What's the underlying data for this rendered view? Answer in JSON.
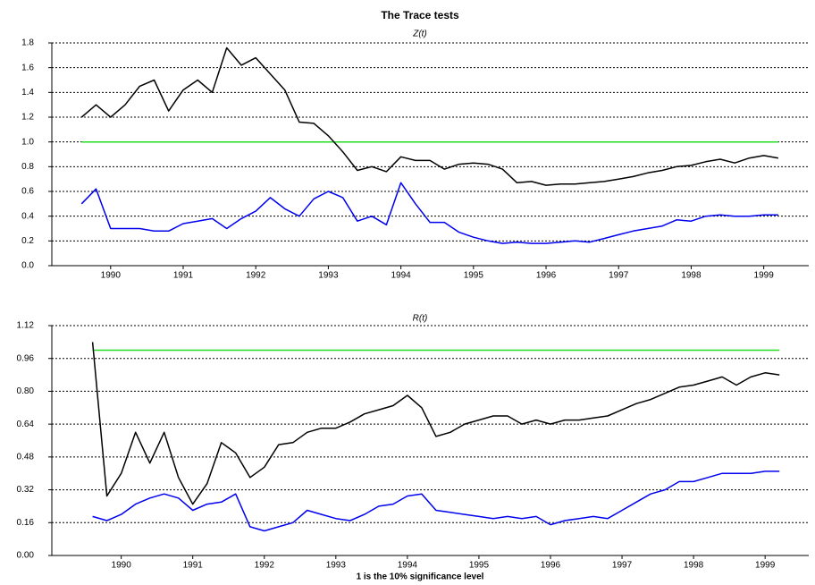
{
  "title": "The Trace tests",
  "footnote": "1 is the 10% significance level",
  "chart_data": [
    {
      "type": "line",
      "subtitle": "Z(t)",
      "x": [
        1989.6,
        1989.8,
        1990.0,
        1990.2,
        1990.4,
        1990.6,
        1990.8,
        1991.0,
        1991.2,
        1991.4,
        1991.6,
        1991.8,
        1992.0,
        1992.2,
        1992.4,
        1992.6,
        1992.8,
        1993.0,
        1993.2,
        1993.4,
        1993.6,
        1993.8,
        1994.0,
        1994.2,
        1994.4,
        1994.6,
        1994.8,
        1995.0,
        1995.2,
        1995.4,
        1995.6,
        1995.8,
        1996.0,
        1996.2,
        1996.4,
        1996.6,
        1996.8,
        1997.0,
        1997.2,
        1997.4,
        1997.6,
        1997.8,
        1998.0,
        1998.2,
        1998.4,
        1998.6,
        1998.8,
        1999.0,
        1999.2
      ],
      "xlim": [
        1989.19,
        1999.62
      ],
      "xticks": [
        1990,
        1991,
        1992,
        1993,
        1994,
        1995,
        1996,
        1997,
        1998,
        1999
      ],
      "ylim": [
        0,
        1.8
      ],
      "yticks": [
        {
          "value": 0,
          "label": "0.0"
        },
        0.2,
        0.4,
        0.6,
        0.8,
        {
          "value": 1,
          "label": "1.0"
        },
        1.2,
        1.4,
        1.6,
        1.8
      ],
      "grid": true,
      "series": [
        {
          "color": "#22dd22",
          "values": [
            1,
            1,
            1,
            1,
            1,
            1,
            1,
            1,
            1,
            1,
            1,
            1,
            1,
            1,
            1,
            1,
            1,
            1,
            1,
            1,
            1,
            1,
            1,
            1,
            1,
            1,
            1,
            1,
            1,
            1,
            1,
            1,
            1,
            1,
            1,
            1,
            1,
            1,
            1,
            1,
            1,
            1,
            1,
            1,
            1,
            1,
            1,
            1,
            1
          ]
        },
        {
          "color": "#000000",
          "values": [
            1.2,
            1.3,
            1.2,
            1.3,
            1.45,
            1.5,
            1.25,
            1.42,
            1.5,
            1.4,
            1.76,
            1.62,
            1.68,
            1.55,
            1.42,
            1.16,
            1.15,
            1.05,
            0.92,
            0.77,
            0.8,
            0.76,
            0.88,
            0.85,
            0.85,
            0.78,
            0.82,
            0.83,
            0.82,
            0.78,
            0.67,
            0.68,
            0.65,
            0.66,
            0.66,
            0.67,
            0.68,
            0.7,
            0.72,
            0.75,
            0.77,
            0.8,
            0.81,
            0.84,
            0.86,
            0.83,
            0.87,
            0.89,
            0.87
          ]
        },
        {
          "color": "#0000ee",
          "values": [
            0.5,
            0.62,
            0.3,
            0.3,
            0.3,
            0.28,
            0.28,
            0.34,
            0.36,
            0.38,
            0.3,
            0.38,
            0.44,
            0.55,
            0.46,
            0.4,
            0.54,
            0.6,
            0.55,
            0.36,
            0.4,
            0.33,
            0.67,
            0.5,
            0.35,
            0.35,
            0.27,
            0.23,
            0.2,
            0.18,
            0.19,
            0.18,
            0.18,
            0.19,
            0.2,
            0.19,
            0.22,
            0.25,
            0.28,
            0.3,
            0.32,
            0.37,
            0.36,
            0.4,
            0.41,
            0.4,
            0.4,
            0.41,
            0.41
          ]
        }
      ]
    },
    {
      "type": "line",
      "subtitle": "R(t)",
      "x": [
        1989.6,
        1989.8,
        1990.0,
        1990.2,
        1990.4,
        1990.6,
        1990.8,
        1991.0,
        1991.2,
        1991.4,
        1991.6,
        1991.8,
        1992.0,
        1992.2,
        1992.4,
        1992.6,
        1992.8,
        1993.0,
        1993.2,
        1993.4,
        1993.6,
        1993.8,
        1994.0,
        1994.2,
        1994.4,
        1994.6,
        1994.8,
        1995.0,
        1995.2,
        1995.4,
        1995.6,
        1995.8,
        1996.0,
        1996.2,
        1996.4,
        1996.6,
        1996.8,
        1997.0,
        1997.2,
        1997.4,
        1997.6,
        1997.8,
        1998.0,
        1998.2,
        1998.4,
        1998.6,
        1998.8,
        1999.0,
        1999.2
      ],
      "xlim": [
        1989.03,
        1999.61
      ],
      "xticks": [
        1990,
        1991,
        1992,
        1993,
        1994,
        1995,
        1996,
        1997,
        1998,
        1999
      ],
      "ylim": [
        0,
        1.12
      ],
      "yticks": [
        {
          "value": 0,
          "label": "0.00"
        },
        0.16,
        0.32,
        0.48,
        0.64,
        {
          "value": 0.8,
          "label": "0.80"
        },
        0.96,
        1.12
      ],
      "grid": true,
      "series": [
        {
          "color": "#22dd22",
          "values": [
            1,
            1,
            1,
            1,
            1,
            1,
            1,
            1,
            1,
            1,
            1,
            1,
            1,
            1,
            1,
            1,
            1,
            1,
            1,
            1,
            1,
            1,
            1,
            1,
            1,
            1,
            1,
            1,
            1,
            1,
            1,
            1,
            1,
            1,
            1,
            1,
            1,
            1,
            1,
            1,
            1,
            1,
            1,
            1,
            1,
            1,
            1,
            1,
            1
          ]
        },
        {
          "color": "#000000",
          "values": [
            1.04,
            0.29,
            0.4,
            0.6,
            0.45,
            0.6,
            0.38,
            0.25,
            0.35,
            0.55,
            0.5,
            0.38,
            0.43,
            0.54,
            0.55,
            0.6,
            0.62,
            0.62,
            0.65,
            0.69,
            0.71,
            0.73,
            0.78,
            0.72,
            0.58,
            0.6,
            0.64,
            0.66,
            0.68,
            0.68,
            0.64,
            0.66,
            0.64,
            0.66,
            0.66,
            0.67,
            0.68,
            0.71,
            0.74,
            0.76,
            0.79,
            0.82,
            0.83,
            0.85,
            0.87,
            0.83,
            0.87,
            0.89,
            0.88
          ]
        },
        {
          "color": "#0000ee",
          "values": [
            0.19,
            0.17,
            0.2,
            0.25,
            0.28,
            0.3,
            0.28,
            0.22,
            0.25,
            0.26,
            0.3,
            0.14,
            0.12,
            0.14,
            0.16,
            0.22,
            0.2,
            0.18,
            0.17,
            0.2,
            0.24,
            0.25,
            0.29,
            0.3,
            0.22,
            0.21,
            0.2,
            0.19,
            0.18,
            0.19,
            0.18,
            0.19,
            0.15,
            0.17,
            0.18,
            0.19,
            0.18,
            0.22,
            0.26,
            0.3,
            0.32,
            0.36,
            0.36,
            0.38,
            0.4,
            0.4,
            0.4,
            0.41,
            0.41
          ]
        }
      ]
    }
  ]
}
